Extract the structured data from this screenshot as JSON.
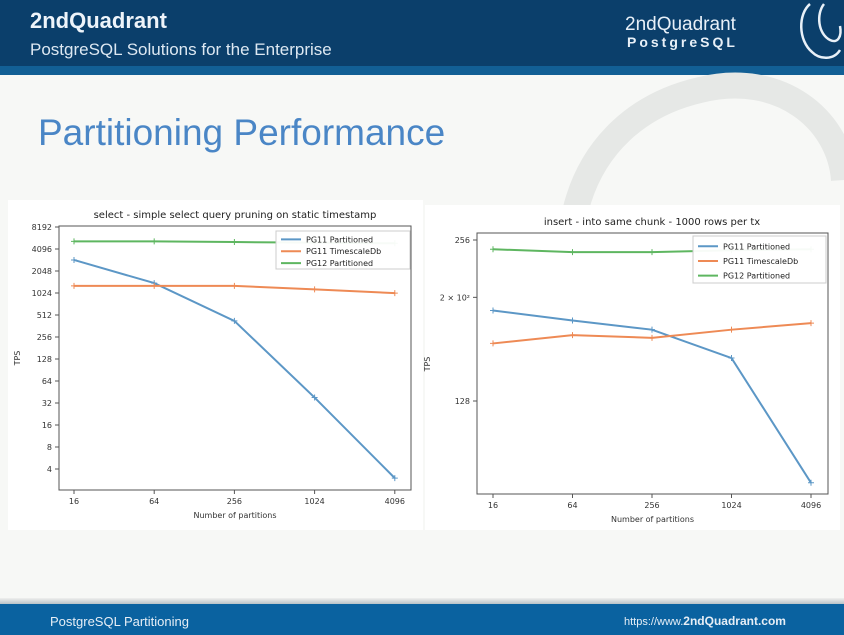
{
  "header": {
    "brand": "2ndQuadrant",
    "tagline": "PostgreSQL Solutions for the Enterprise",
    "logo_line1": "2ndQuadrant",
    "logo_line2": "PostgreSQL",
    "logo_icon": "elephant-icon"
  },
  "slide": {
    "title": "Partitioning Performance"
  },
  "footer": {
    "left": "PostgreSQL Partitioning",
    "url_prefix": "https://www.",
    "url_domain": "2ndQuadrant.com"
  },
  "colors": {
    "blue": "#5c97c6",
    "orange": "#ee8a55",
    "green": "#5eb660",
    "header": "#0b3f6b",
    "footer": "#0a62a0",
    "title": "#4a86c6"
  },
  "chart_data": [
    {
      "type": "line",
      "title": "select - simple select query pruning on static timestamp",
      "xlabel": "Number of partitions",
      "ylabel": "TPS",
      "x": [
        16,
        64,
        256,
        1024,
        4096
      ],
      "xticks": [
        "16",
        "64",
        "256",
        "1024",
        "4096"
      ],
      "yscale": "log2",
      "yticks": [
        4,
        8,
        16,
        32,
        64,
        128,
        256,
        512,
        1024,
        2048,
        4096,
        8192
      ],
      "ytick_labels": [
        "4",
        "8",
        "16",
        "32",
        "64",
        "128",
        "256",
        "512",
        "1024",
        "2048",
        "4096",
        "8192"
      ],
      "ylim": [
        2.5,
        8192
      ],
      "legend": "top-right",
      "series": [
        {
          "name": "PG11 Partitioned",
          "color": "blue",
          "values": [
            2900,
            1400,
            425,
            38,
            3
          ]
        },
        {
          "name": "PG11 TimescaleDb",
          "color": "orange",
          "values": [
            1280,
            1280,
            1280,
            1150,
            1020
          ]
        },
        {
          "name": "PG12 Partitioned",
          "color": "green",
          "values": [
            5200,
            5200,
            5100,
            5000,
            4900
          ]
        }
      ]
    },
    {
      "type": "line",
      "title": "insert - into same chunk - 1000 rows per tx",
      "xlabel": "Number of partitions",
      "ylabel": "TPS",
      "x": [
        16,
        64,
        256,
        1024,
        4096
      ],
      "xticks": [
        "16",
        "64",
        "256",
        "1024",
        "4096"
      ],
      "yscale": "log",
      "yticks": [
        128,
        200,
        256
      ],
      "ytick_labels": [
        "128",
        "2 × 10²",
        "256"
      ],
      "ylim": [
        86,
        262
      ],
      "legend": "top-right",
      "series": [
        {
          "name": "PG11 Partitioned",
          "color": "blue",
          "values": [
            189,
            181,
            174,
            154,
            90
          ]
        },
        {
          "name": "PG11 TimescaleDb",
          "color": "orange",
          "values": [
            164,
            170,
            168,
            174,
            179
          ]
        },
        {
          "name": "PG12 Partitioned",
          "color": "green",
          "values": [
            246,
            243,
            243,
            245,
            246
          ]
        }
      ]
    }
  ]
}
